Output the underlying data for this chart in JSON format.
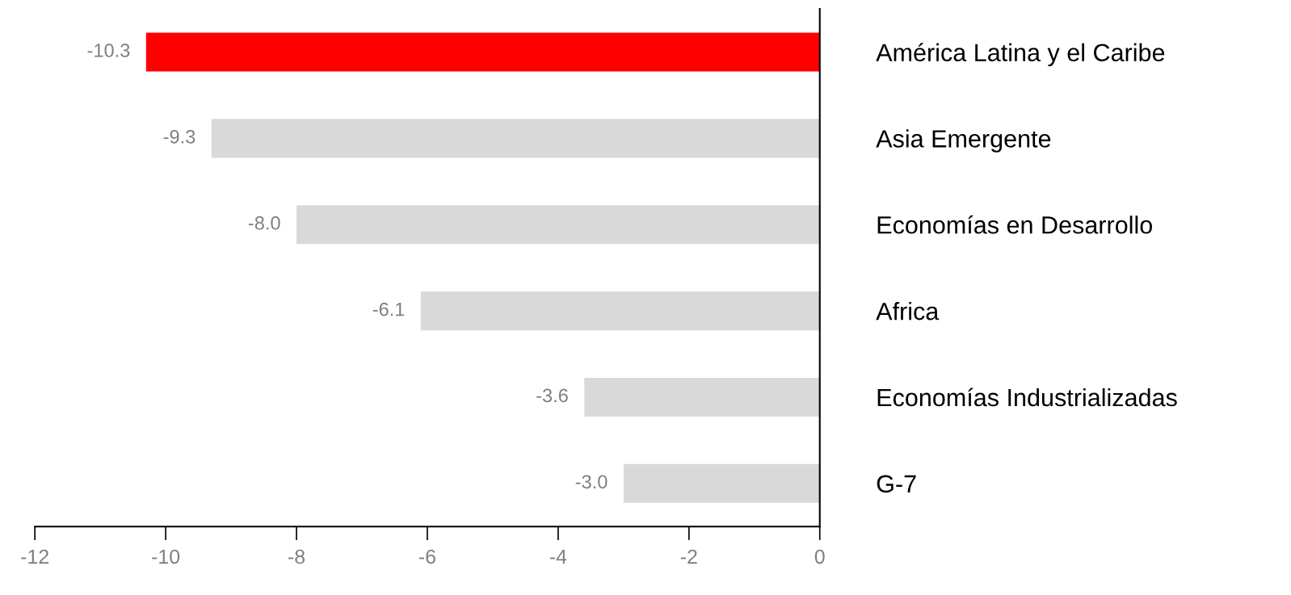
{
  "chart_data": {
    "type": "bar",
    "orientation": "horizontal",
    "categories": [
      "América Latina y el Caribe",
      "Asia Emergente",
      "Economías en Desarrollo",
      "Africa",
      "Economías Industrializadas",
      "G-7"
    ],
    "values": [
      -10.3,
      -9.3,
      -8.0,
      -6.1,
      -3.6,
      -3.0
    ],
    "colors": [
      "#ff0000",
      "#d9d9d9",
      "#d9d9d9",
      "#d9d9d9",
      "#d9d9d9",
      "#d9d9d9"
    ],
    "value_labels": [
      "-10.3",
      "-9.3",
      "-8.0",
      "-6.1",
      "-3.6",
      "-3.0"
    ],
    "xlim": [
      -12,
      0
    ],
    "xticks": [
      -12,
      -10,
      -8,
      -6,
      -4,
      -2,
      0
    ],
    "grid": false,
    "legend": false
  }
}
